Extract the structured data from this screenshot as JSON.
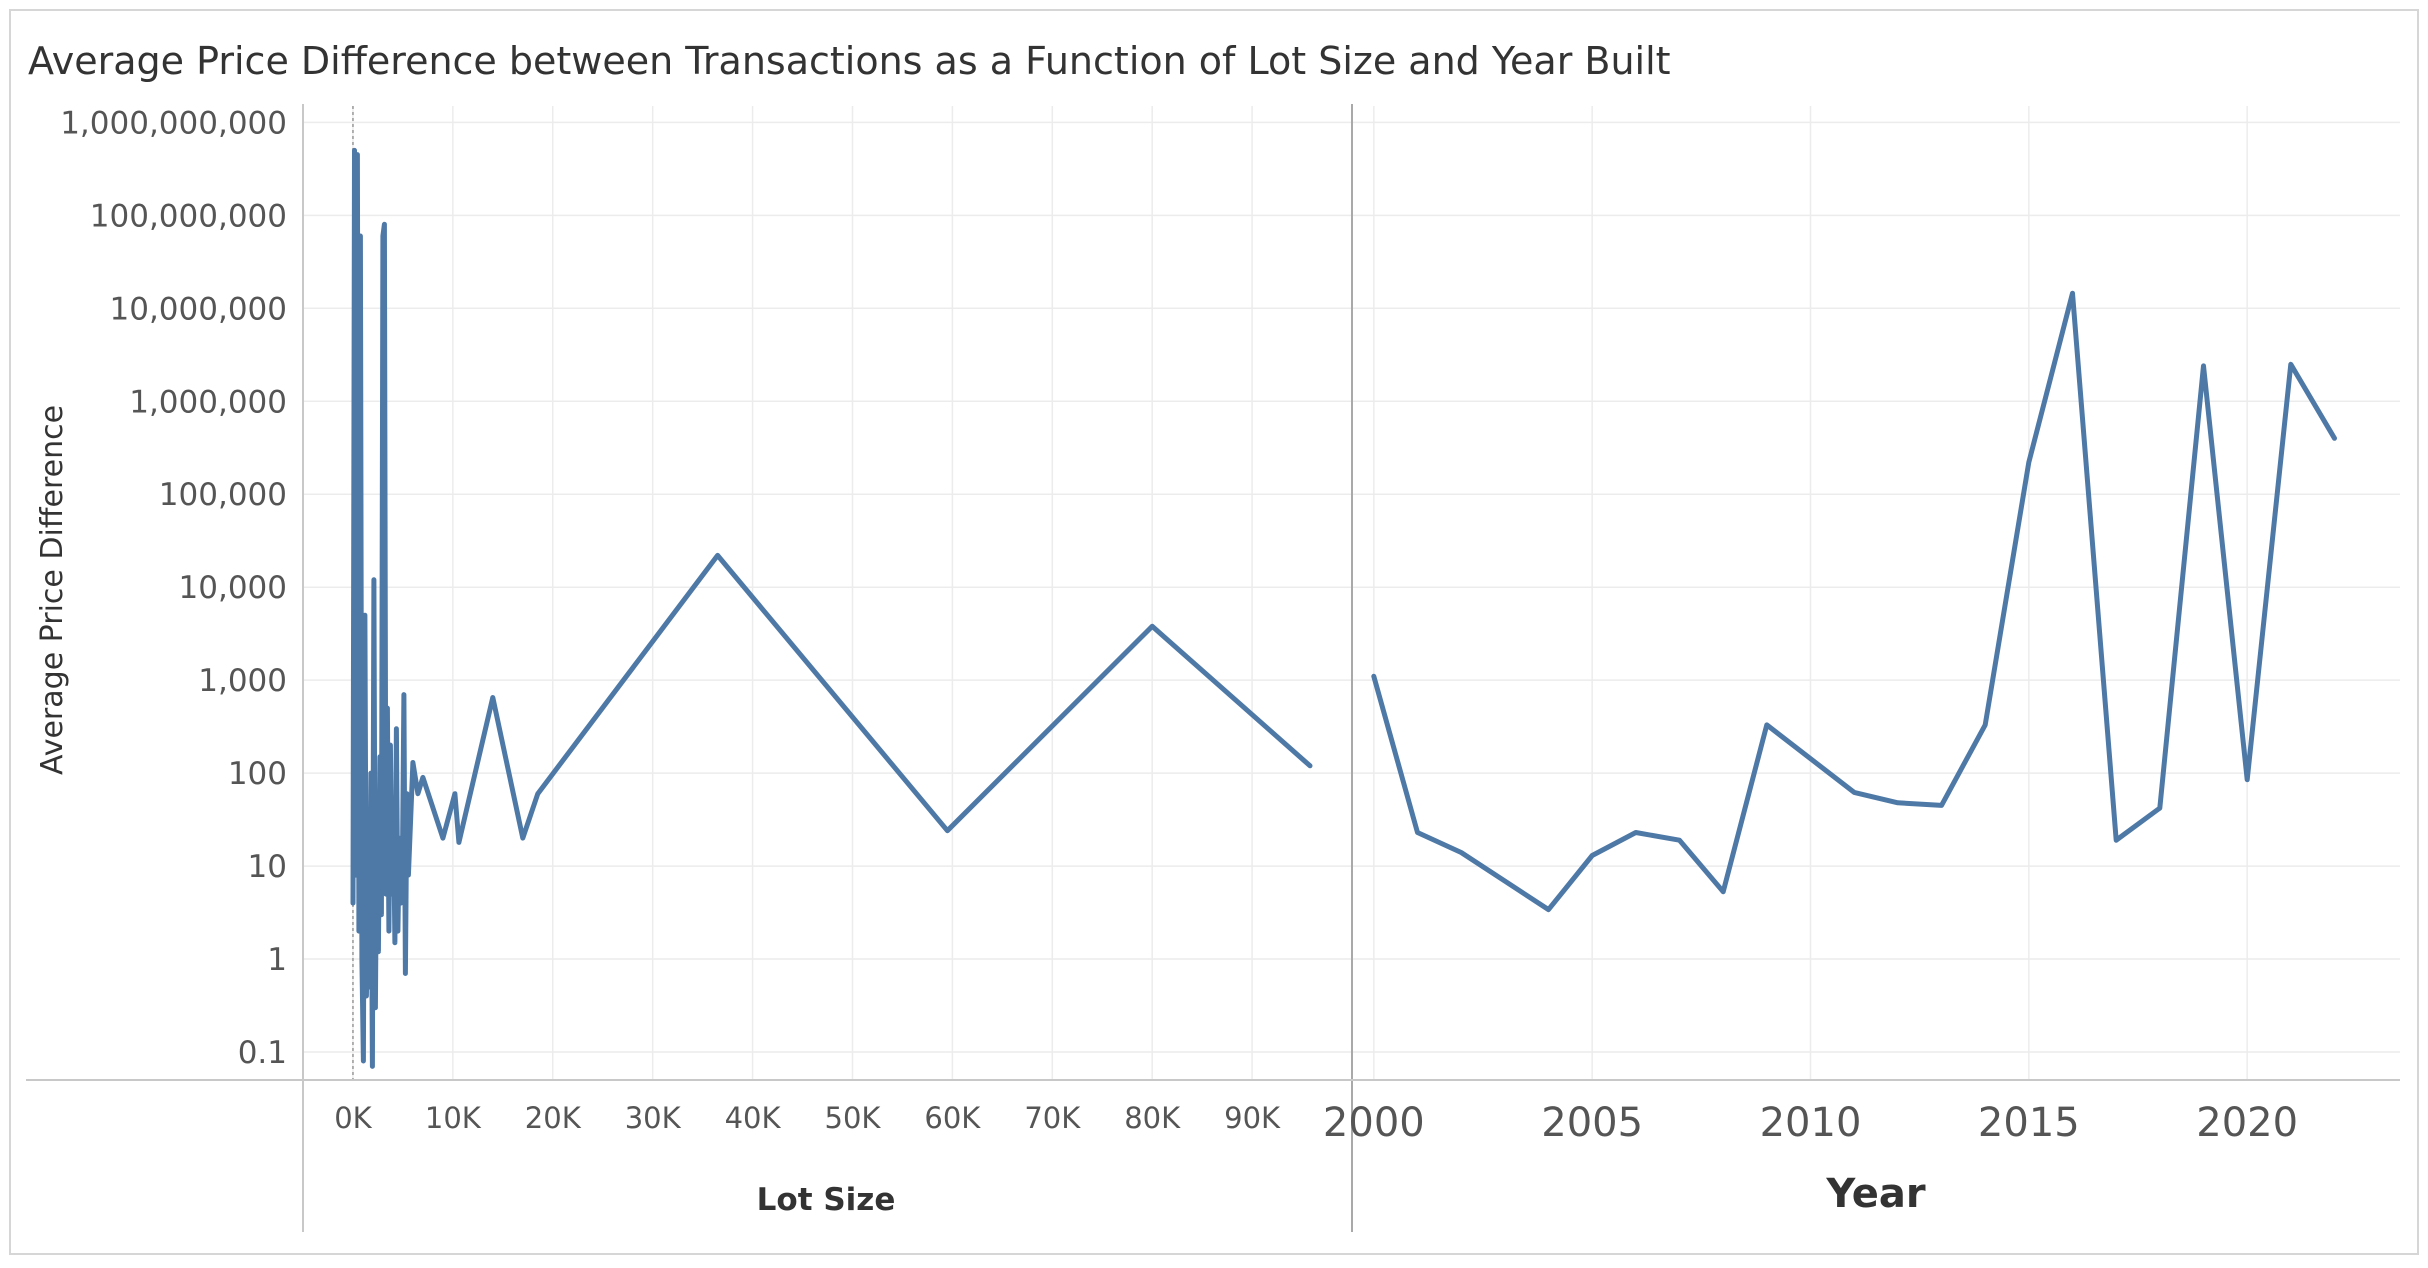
{
  "title": "Average Price Difference between Transactions as a Function of Lot Size and Year Built",
  "colors": {
    "line": "#4e79a7",
    "grid": "#ececec",
    "axis": "#c8c8c8",
    "text": "#555555",
    "title": "#333333"
  },
  "chart_data": [
    {
      "type": "line",
      "title": "Average Price Difference between Transactions as a Function of Lot Size and Year Built",
      "xlabel": "Lot Size",
      "ylabel": "Average Price Difference",
      "yscale": "log",
      "ylim": [
        0.05,
        1500000000
      ],
      "xlim": [
        -5000,
        100000
      ],
      "x_tick_values": [
        0,
        10000,
        20000,
        30000,
        40000,
        50000,
        60000,
        70000,
        80000,
        90000
      ],
      "x_tick_labels": [
        "0K",
        "10K",
        "20K",
        "30K",
        "40K",
        "50K",
        "60K",
        "70K",
        "80K",
        "90K"
      ],
      "y_tick_values": [
        0.1,
        1,
        10,
        100,
        1000,
        10000,
        100000,
        1000000,
        10000000,
        100000000,
        1000000000
      ],
      "y_tick_labels": [
        "0.1",
        "1",
        "10",
        "100",
        "1,000",
        "10,000",
        "100,000",
        "1,000,000",
        "10,000,000",
        "100,000,000",
        "1,000,000,000"
      ],
      "grid": true,
      "series": [
        {
          "x": [
            0,
            150,
            300,
            450,
            600,
            750,
            900,
            1050,
            1200,
            1350,
            1500,
            1650,
            1800,
            1950,
            2100,
            2250,
            2400,
            2550,
            2700,
            2850,
            3000,
            3150,
            3300,
            3450,
            3600,
            3750,
            3900,
            4050,
            4200,
            4350,
            4500,
            4650,
            4800,
            4950,
            5100,
            5250,
            5400,
            5550,
            6000,
            6500,
            7000,
            9000,
            10200,
            10600,
            14000,
            17000,
            18500,
            36500,
            59500,
            80000,
            95800
          ],
          "y": [
            4,
            500000000,
            8,
            450000000,
            2,
            60000000,
            1,
            0.08,
            5000,
            0.4,
            3,
            0.5,
            100,
            0.07,
            12000,
            0.3,
            50,
            1.2,
            150,
            3,
            60000000,
            80000000,
            5,
            500,
            2,
            200,
            5,
            40,
            1.5,
            300,
            2,
            20,
            4,
            10,
            700,
            0.7,
            60,
            8,
            130,
            60,
            90,
            20,
            60,
            18,
            650,
            20,
            60,
            22000,
            24,
            3800,
            120
          ]
        }
      ]
    },
    {
      "type": "line",
      "xlabel": "Year",
      "ylabel": "Average Price Difference",
      "yscale": "log",
      "ylim": [
        0.05,
        1500000000
      ],
      "xlim": [
        1999.5,
        2023.5
      ],
      "x_tick_values": [
        2000,
        2005,
        2010,
        2015,
        2020
      ],
      "x_tick_labels": [
        "2000",
        "2005",
        "2010",
        "2015",
        "2020"
      ],
      "grid": true,
      "series": [
        {
          "x": [
            2000,
            2001,
            2002,
            2004,
            2005,
            2006,
            2007,
            2008,
            2009,
            2011,
            2012,
            2013,
            2014,
            2015,
            2016,
            2017,
            2018,
            2019,
            2020,
            2021,
            2022
          ],
          "y": [
            1100,
            23,
            14,
            3.4,
            13,
            23,
            19,
            5.3,
            330,
            62,
            48,
            45,
            330,
            220000,
            14500000,
            19,
            42,
            2400000,
            85,
            2500000,
            400000
          ]
        }
      ]
    }
  ]
}
